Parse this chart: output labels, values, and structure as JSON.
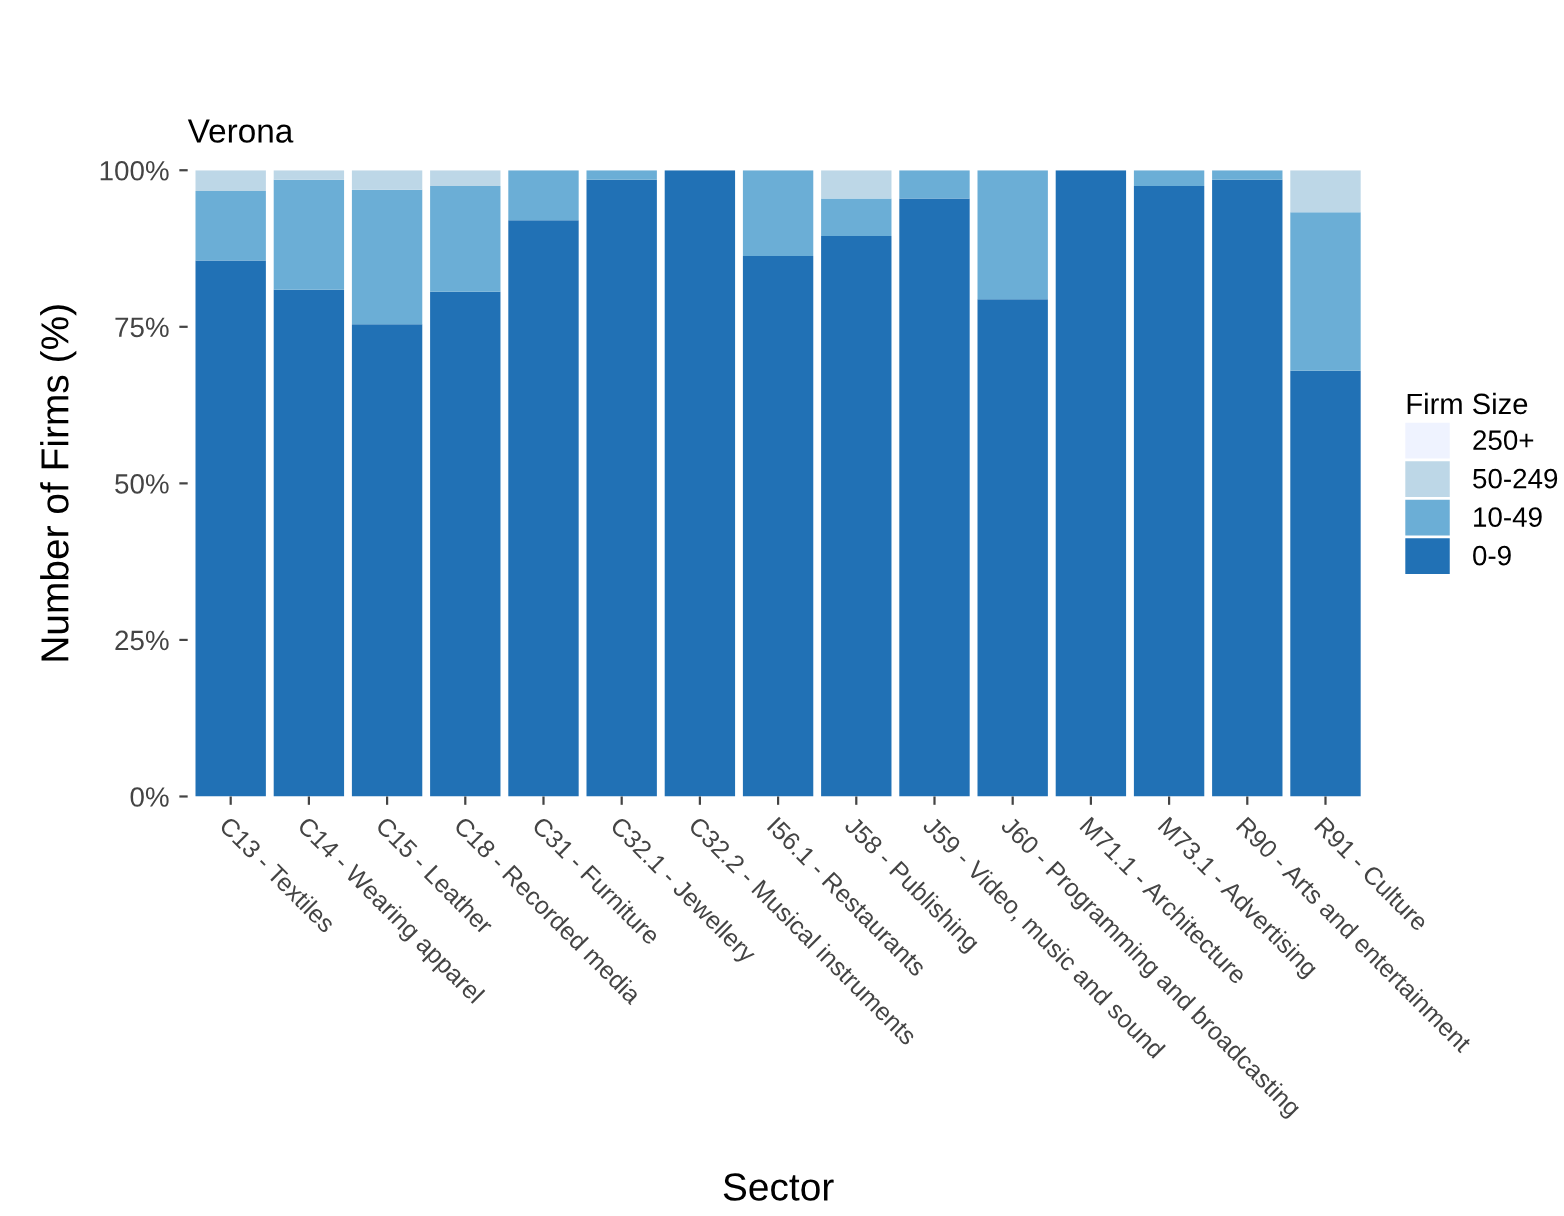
{
  "chart_data": {
    "type": "bar",
    "stacked": true,
    "title": "Verona",
    "xlabel": "Sector",
    "ylabel": "Number of Firms (%)",
    "legend_title": "Firm Size",
    "legend": "right",
    "grid": false,
    "categories": [
      "C13 - Textiles",
      "C14 - Wearing apparel",
      "C15 - Leather",
      "C18 - Recorded media",
      "C31 - Furniture",
      "C32.1 - Jewellery",
      "C32.2 - Musical instruments",
      "I56.1 - Restaurants",
      "J58 - Publishing",
      "J59 - Video, music and sound",
      "J60 - Programming and broadcasting",
      "M71.1 - Architecture",
      "M73.1 - Advertising",
      "R90 - Arts and entertainment",
      "R91 - Culture"
    ],
    "series": [
      {
        "name": "0-9",
        "color": "#2171b5",
        "values": [
          85.6,
          80.9,
          75.4,
          80.6,
          92.0,
          98.5,
          100,
          86.3,
          89.5,
          95.5,
          79.4,
          100,
          97.5,
          98.5,
          68.0
        ]
      },
      {
        "name": "10-49",
        "color": "#6baed6",
        "values": [
          11.1,
          17.6,
          21.5,
          16.9,
          8.0,
          1.5,
          0,
          13.7,
          6.0,
          4.5,
          20.6,
          0,
          2.5,
          1.5,
          25.3
        ]
      },
      {
        "name": "50-249",
        "color": "#bdd7e7",
        "values": [
          3.3,
          1.5,
          3.1,
          2.5,
          0,
          0,
          0,
          0,
          4.5,
          0,
          0,
          0,
          0,
          0,
          6.7
        ]
      },
      {
        "name": "250+",
        "color": "#eff3ff",
        "values": [
          0,
          0,
          0,
          0,
          0,
          0,
          0,
          0,
          0,
          0,
          0,
          0,
          0,
          0,
          0
        ]
      }
    ],
    "ylim": [
      0,
      100
    ],
    "yticks": [
      {
        "value": 0,
        "label": "0%"
      },
      {
        "value": 25,
        "label": "25%"
      },
      {
        "value": 50,
        "label": "50%"
      },
      {
        "value": 75,
        "label": "75%"
      },
      {
        "value": 100,
        "label": "100%"
      }
    ]
  }
}
